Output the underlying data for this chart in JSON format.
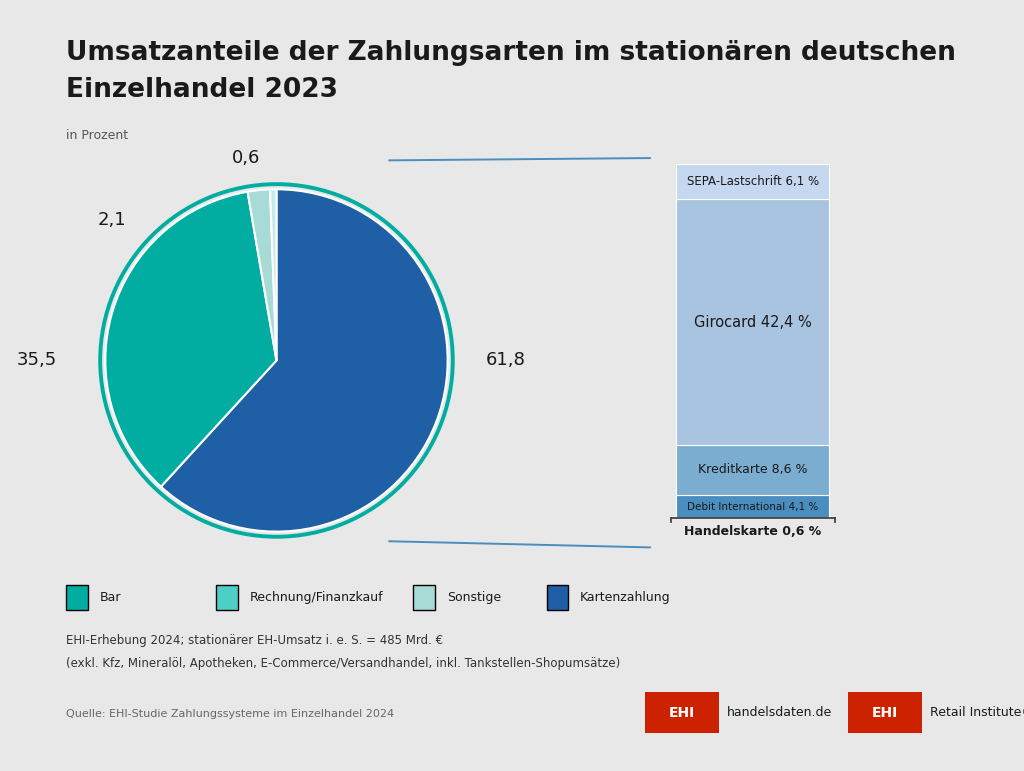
{
  "title_line1": "Umsatzanteile der Zahlungsarten im stationären deutschen",
  "title_line2": "Einzelhandel 2023",
  "subtitle": "in Prozent",
  "bg_color": "#e8e8e8",
  "inner_bg": "#ffffff",
  "pie_values": [
    61.8,
    35.5,
    2.1,
    0.6
  ],
  "pie_labels": [
    "61,8",
    "35,5",
    "2,1",
    "0,6"
  ],
  "pie_colors": [
    "#1f5fa6",
    "#00ada0",
    "#a8dbd6",
    "#c5eae7"
  ],
  "bar_segments": [
    {
      "value": 6.1,
      "color": "#c5d8ef",
      "label": "SEPA-Lastschrift 6,1 %"
    },
    {
      "value": 42.4,
      "color": "#a8c4e0",
      "label": "Girocard 42,4 %"
    },
    {
      "value": 8.6,
      "color": "#7aadd0",
      "label": "Kreditkarte 8,6 %"
    },
    {
      "value": 4.1,
      "color": "#4a8dbf",
      "label": "Debit International 4,1 %"
    }
  ],
  "handelskarte_label": "Handelskarte 0,6 %",
  "legend_items": [
    {
      "label": "Bar",
      "color": "#00ada0"
    },
    {
      "label": "Rechnung/Finanzkauf",
      "color": "#4dcfc5"
    },
    {
      "label": "Sonstige",
      "color": "#a8dbd6"
    },
    {
      "label": "Kartenzahlung",
      "color": "#1f5fa6"
    }
  ],
  "footnote1": "EHI-Erhebung 2024; stationärer EH-Umsatz i. e. S. = 485 Mrd. €",
  "footnote2": "(exkl. Kfz, Mineralöl, Apotheken, E-Commerce/Versandhandel, inkl. Tankstellen-Shopumsätze)",
  "source": "Quelle: EHI-Studie Zahlungssysteme im Einzelhandel 2024",
  "border_color": "#b0b0b0",
  "line_color": "#4a8dbf",
  "pie_edge_color": "#00ada0",
  "text_color": "#1a1a1a"
}
